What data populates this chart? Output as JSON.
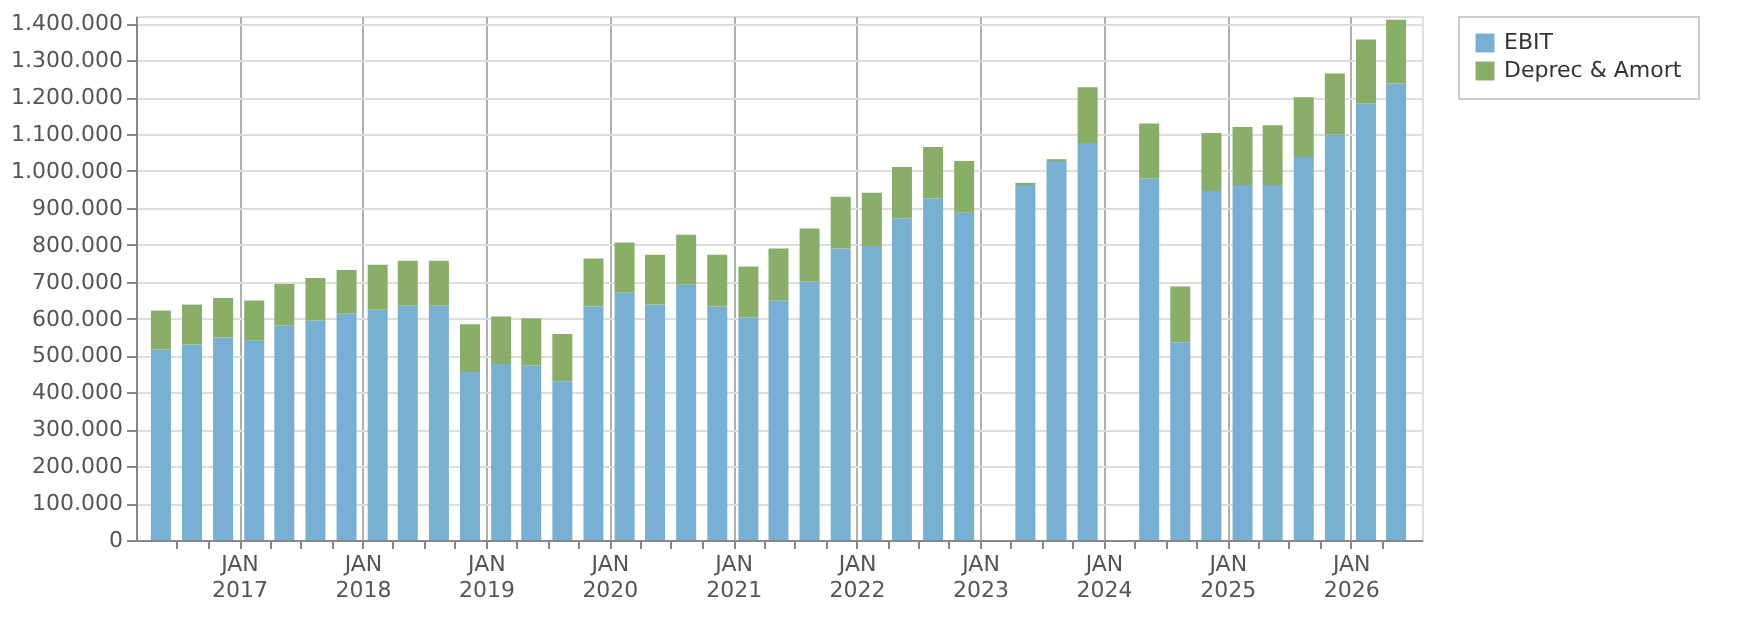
{
  "chart_data": {
    "type": "bar",
    "stacked": true,
    "legend": "top right",
    "grid": true,
    "x": [
      "2016-05-15",
      "2016-08-15",
      "2016-11-15",
      "2017-02-15",
      "2017-05-15",
      "2017-08-15",
      "2017-11-15",
      "2018-02-15",
      "2018-05-15",
      "2018-08-15",
      "2018-11-15",
      "2019-02-15",
      "2019-05-15",
      "2019-08-15",
      "2019-11-15",
      "2020-02-15",
      "2020-05-15",
      "2020-08-15",
      "2020-11-15",
      "2021-02-15",
      "2021-05-15",
      "2021-08-15",
      "2021-11-15",
      "2022-02-15",
      "2022-05-15",
      "2022-08-15",
      "2022-11-15",
      "2023-02-15",
      "2023-05-15",
      "2023-08-15",
      "2023-11-15",
      "2024-02-15",
      "2024-05-15",
      "2024-08-15",
      "2024-11-15",
      "2025-02-15",
      "2025-05-15",
      "2025-08-15",
      "2025-11-15",
      "2026-02-15",
      "2026-05-15"
    ],
    "series": [
      {
        "name": "EBIT",
        "color": "#78b0d3",
        "values": [
          516000,
          530000,
          549000,
          541000,
          581000,
          595000,
          613000,
          624000,
          635000,
          635000,
          455000,
          477000,
          473000,
          430000,
          633000,
          671000,
          638000,
          692000,
          633000,
          603000,
          649000,
          700000,
          790000,
          797000,
          872000,
          926000,
          887000,
          null,
          962000,
          1027000,
          1076000,
          null,
          980000,
          536000,
          946000,
          962000,
          962000,
          1038000,
          1099000,
          1183000,
          1237000
        ]
      },
      {
        "name": "Deprec & Amort",
        "color": "#89ae68",
        "values": [
          106000,
          108000,
          107000,
          108000,
          113000,
          115000,
          119000,
          122000,
          122000,
          122000,
          130000,
          129000,
          128000,
          128000,
          130000,
          135000,
          135000,
          135000,
          140000,
          138000,
          141000,
          144000,
          140000,
          144000,
          139000,
          139000,
          140000,
          null,
          6000,
          5000,
          151000,
          null,
          149000,
          151000,
          157000,
          157000,
          162000,
          162000,
          165000,
          173000,
          173000
        ]
      }
    ],
    "xlim": [
      "2016-04-01",
      "2026-07-01"
    ],
    "xticks": [
      {
        "value": "2016-07-01",
        "label": null
      },
      {
        "value": "2016-10-01",
        "label": null
      },
      {
        "value": "2017-01-01",
        "label": "JAN\n2017"
      },
      {
        "value": "2017-04-01",
        "label": null
      },
      {
        "value": "2017-07-01",
        "label": null
      },
      {
        "value": "2017-10-01",
        "label": null
      },
      {
        "value": "2018-01-01",
        "label": "JAN\n2018"
      },
      {
        "value": "2018-04-01",
        "label": null
      },
      {
        "value": "2018-07-01",
        "label": null
      },
      {
        "value": "2018-10-01",
        "label": null
      },
      {
        "value": "2019-01-01",
        "label": "JAN\n2019"
      },
      {
        "value": "2019-04-01",
        "label": null
      },
      {
        "value": "2019-07-01",
        "label": null
      },
      {
        "value": "2019-10-01",
        "label": null
      },
      {
        "value": "2020-01-01",
        "label": "JAN\n2020"
      },
      {
        "value": "2020-04-01",
        "label": null
      },
      {
        "value": "2020-07-01",
        "label": null
      },
      {
        "value": "2020-10-01",
        "label": null
      },
      {
        "value": "2021-01-01",
        "label": "JAN\n2021"
      },
      {
        "value": "2021-04-01",
        "label": null
      },
      {
        "value": "2021-07-01",
        "label": null
      },
      {
        "value": "2021-10-01",
        "label": null
      },
      {
        "value": "2022-01-01",
        "label": "JAN\n2022"
      },
      {
        "value": "2022-04-01",
        "label": null
      },
      {
        "value": "2022-07-01",
        "label": null
      },
      {
        "value": "2022-10-01",
        "label": null
      },
      {
        "value": "2023-01-01",
        "label": "JAN\n2023"
      },
      {
        "value": "2023-04-01",
        "label": null
      },
      {
        "value": "2023-07-01",
        "label": null
      },
      {
        "value": "2023-10-01",
        "label": null
      },
      {
        "value": "2024-01-01",
        "label": "JAN\n2024"
      },
      {
        "value": "2024-04-01",
        "label": null
      },
      {
        "value": "2024-07-01",
        "label": null
      },
      {
        "value": "2024-10-01",
        "label": null
      },
      {
        "value": "2025-01-01",
        "label": "JAN\n2025"
      },
      {
        "value": "2025-04-01",
        "label": null
      },
      {
        "value": "2025-07-01",
        "label": null
      },
      {
        "value": "2025-10-01",
        "label": null
      },
      {
        "value": "2026-01-01",
        "label": "JAN\n2026"
      },
      {
        "value": "2026-04-01",
        "label": null
      }
    ],
    "ylim": [
      0,
      1420000
    ],
    "yticks": [
      0,
      {
        "value": 100000,
        "label": "100.000"
      },
      {
        "value": 200000,
        "label": "200.000"
      },
      {
        "value": 300000,
        "label": "300.000"
      },
      {
        "value": 400000,
        "label": "400.000"
      },
      {
        "value": 500000,
        "label": "500.000"
      },
      {
        "value": 600000,
        "label": "600.000"
      },
      {
        "value": 700000,
        "label": "700.000"
      },
      {
        "value": 800000,
        "label": "800.000"
      },
      {
        "value": 900000,
        "label": "900.000"
      },
      {
        "value": 1000000,
        "label": "1.000.000"
      },
      {
        "value": 1100000,
        "label": "1.100.000"
      },
      {
        "value": 1200000,
        "label": "1.200.000"
      },
      {
        "value": 1300000,
        "label": "1.300.000"
      },
      {
        "value": 1400000,
        "label": "1.400.000"
      }
    ]
  }
}
